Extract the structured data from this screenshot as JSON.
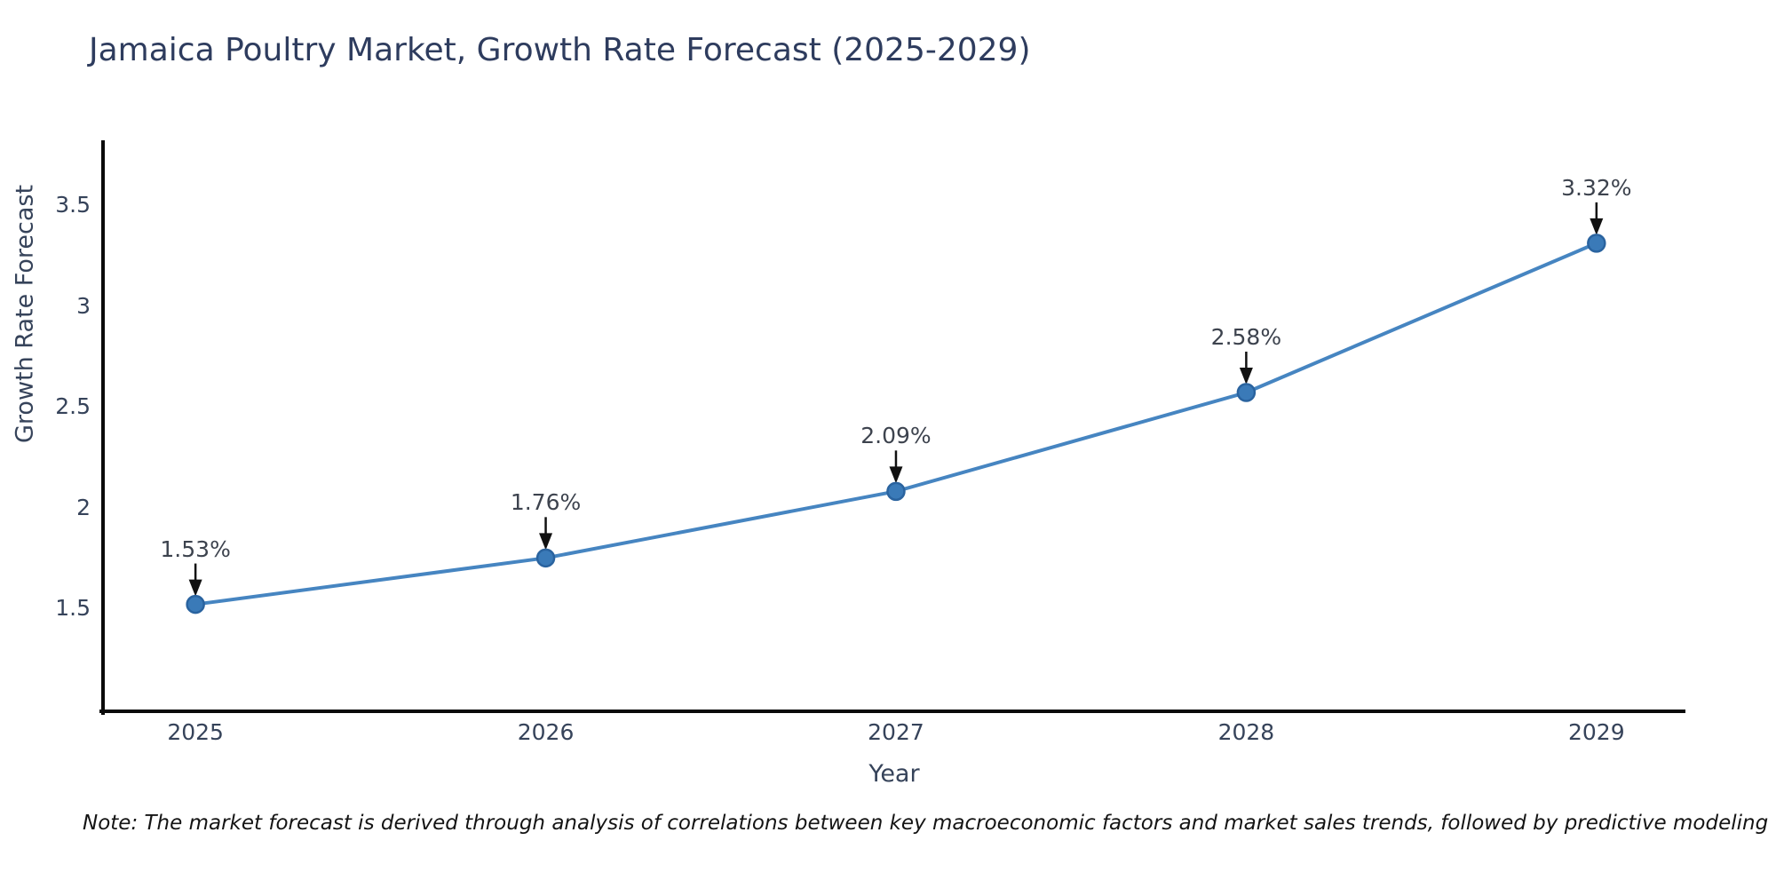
{
  "title": "Jamaica Poultry Market, Growth Rate Forecast (2025-2029)",
  "note": "Note: The market forecast is derived through analysis of correlations between key macroeconomic factors and market sales trends, followed by predictive modeling to project future sales",
  "chart_data": {
    "type": "line",
    "title": "Jamaica Poultry Market, Growth Rate Forecast (2025-2029)",
    "xlabel": "Year",
    "ylabel": "Growth Rate Forecast",
    "categories": [
      "2025",
      "2026",
      "2027",
      "2028",
      "2029"
    ],
    "values": [
      1.53,
      1.76,
      2.09,
      2.58,
      3.32
    ],
    "point_labels": [
      "1.53%",
      "1.76%",
      "2.09%",
      "2.58%",
      "3.32%"
    ],
    "ytick_values": [
      1.5,
      2,
      2.5,
      3,
      3.5
    ],
    "ytick_labels": [
      "1.5",
      "2",
      "2.5",
      "3",
      "3.5"
    ],
    "ylim": [
      1.0,
      3.83
    ],
    "xlim": [
      -0.264,
      4.254
    ],
    "grid": false,
    "legend": false,
    "background_color": "#ffffff",
    "line_color": "#4685c1",
    "marker_color": "#3a7ab8",
    "marker_edge_color": "#2a639f",
    "annotation_arrow_color": "#111111",
    "spine_color": "#0a0a0a",
    "text_color": "#36435a"
  }
}
